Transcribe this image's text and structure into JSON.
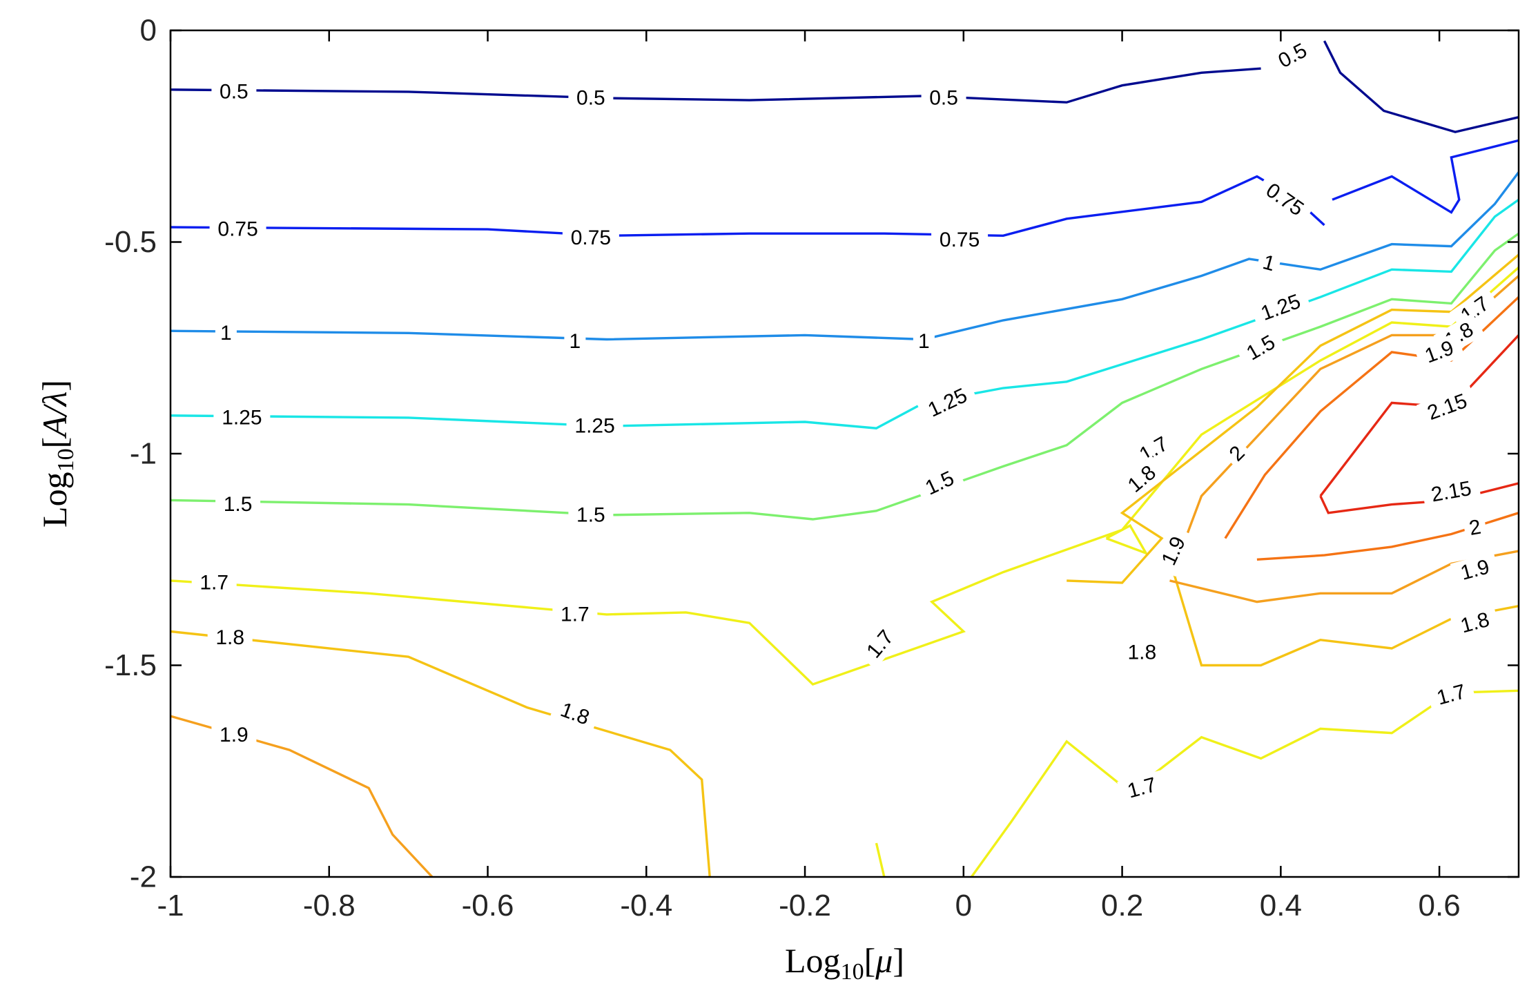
{
  "chart_data": {
    "type": "contour",
    "xlabel": {
      "prefix": "Log",
      "sub": "10",
      "open": "[",
      "var": "μ",
      "close": "]"
    },
    "ylabel": {
      "prefix": "Log",
      "sub": "10",
      "open": "[",
      "var": "A/λ",
      "close": "]"
    },
    "xlim": [
      -1,
      0.7
    ],
    "ylim": [
      -2,
      0
    ],
    "xticks": [
      -1,
      -0.8,
      -0.6,
      -0.4,
      -0.2,
      0,
      0.2,
      0.4,
      0.6
    ],
    "xtick_labels": [
      "-1",
      "-0.8",
      "-0.6",
      "-0.4",
      "-0.2",
      "0",
      "0.2",
      "0.4",
      "0.6"
    ],
    "yticks": [
      0,
      -0.5,
      -1,
      -1.5,
      -2
    ],
    "ytick_labels": [
      "0",
      "-0.5",
      "-1",
      "-1.5",
      "-2"
    ],
    "grid": false,
    "colors": {
      "0.5": "#000a8f",
      "0.75": "#0a1ef0",
      "1": "#1f8ce8",
      "1.25": "#19e6e6",
      "1.5": "#7df06e",
      "1.7": "#f0f019",
      "1.8": "#f5c314",
      "1.9": "#f5a01e",
      "2": "#f57314",
      "2.15": "#e62814"
    },
    "contours": [
      {
        "level": "0.5",
        "points": [
          [
            -1,
            -0.14
          ],
          [
            -0.7,
            -0.145
          ],
          [
            -0.45,
            -0.16
          ],
          [
            -0.27,
            -0.165
          ],
          [
            -0.05,
            -0.155
          ],
          [
            0.13,
            -0.17
          ],
          [
            0.2,
            -0.13
          ],
          [
            0.3,
            -0.1
          ],
          [
            0.375,
            -0.09
          ]
        ]
      },
      {
        "level": "0.5",
        "points": [
          [
            0.455,
            -0.025
          ],
          [
            0.475,
            -0.1
          ],
          [
            0.53,
            -0.19
          ],
          [
            0.62,
            -0.24
          ],
          [
            0.7,
            -0.205
          ]
        ]
      },
      {
        "level": "0.75",
        "points": [
          [
            -1,
            -0.465
          ],
          [
            -0.6,
            -0.47
          ],
          [
            -0.45,
            -0.485
          ],
          [
            -0.27,
            -0.48
          ],
          [
            -0.1,
            -0.48
          ],
          [
            0.05,
            -0.485
          ],
          [
            0.13,
            -0.445
          ],
          [
            0.3,
            -0.405
          ],
          [
            0.37,
            -0.345
          ],
          [
            0.42,
            -0.4
          ],
          [
            0.455,
            -0.46
          ]
        ]
      },
      {
        "level": "0.75",
        "points": [
          [
            0.465,
            -0.4
          ],
          [
            0.54,
            -0.345
          ],
          [
            0.615,
            -0.43
          ],
          [
            0.625,
            -0.4
          ],
          [
            0.615,
            -0.3
          ],
          [
            0.7,
            -0.26
          ]
        ]
      },
      {
        "level": "1",
        "points": [
          [
            -1,
            -0.71
          ],
          [
            -0.7,
            -0.715
          ],
          [
            -0.45,
            -0.73
          ],
          [
            -0.2,
            -0.72
          ],
          [
            -0.05,
            -0.73
          ],
          [
            0.05,
            -0.685
          ],
          [
            0.2,
            -0.635
          ],
          [
            0.3,
            -0.58
          ],
          [
            0.36,
            -0.54
          ],
          [
            0.45,
            -0.565
          ],
          [
            0.54,
            -0.505
          ],
          [
            0.615,
            -0.51
          ],
          [
            0.67,
            -0.41
          ],
          [
            0.7,
            -0.335
          ]
        ]
      },
      {
        "level": "1.25",
        "points": [
          [
            -1,
            -0.91
          ],
          [
            -0.7,
            -0.915
          ],
          [
            -0.45,
            -0.935
          ],
          [
            -0.2,
            -0.925
          ],
          [
            -0.11,
            -0.94
          ],
          [
            -0.05,
            -0.88
          ],
          [
            0.05,
            -0.845
          ],
          [
            0.13,
            -0.83
          ],
          [
            0.3,
            -0.73
          ],
          [
            0.45,
            -0.63
          ],
          [
            0.54,
            -0.565
          ],
          [
            0.615,
            -0.57
          ],
          [
            0.67,
            -0.44
          ],
          [
            0.7,
            -0.4
          ]
        ]
      },
      {
        "level": "1.5",
        "points": [
          [
            -1,
            -1.11
          ],
          [
            -0.7,
            -1.12
          ],
          [
            -0.45,
            -1.145
          ],
          [
            -0.27,
            -1.14
          ],
          [
            -0.19,
            -1.155
          ],
          [
            -0.11,
            -1.135
          ],
          [
            0.05,
            -1.03
          ],
          [
            0.13,
            -0.98
          ],
          [
            0.2,
            -0.88
          ],
          [
            0.3,
            -0.8
          ],
          [
            0.45,
            -0.7
          ],
          [
            0.54,
            -0.635
          ],
          [
            0.615,
            -0.645
          ],
          [
            0.67,
            -0.52
          ],
          [
            0.7,
            -0.48
          ]
        ]
      },
      {
        "level": "1.7",
        "points": [
          [
            -1,
            -1.3
          ],
          [
            -0.75,
            -1.33
          ],
          [
            -0.45,
            -1.38
          ],
          [
            -0.35,
            -1.375
          ],
          [
            -0.27,
            -1.4
          ],
          [
            -0.19,
            -1.545
          ],
          [
            0,
            -1.42
          ],
          [
            -0.04,
            -1.35
          ],
          [
            0.05,
            -1.28
          ],
          [
            0.2,
            -1.18
          ],
          [
            0.3,
            -0.955
          ],
          [
            0.45,
            -0.78
          ],
          [
            0.54,
            -0.69
          ],
          [
            0.615,
            -0.7
          ],
          [
            0.7,
            -0.56
          ]
        ]
      },
      {
        "level": "1.7",
        "points": [
          [
            0.18,
            -1.2
          ],
          [
            0.21,
            -1.17
          ],
          [
            0.23,
            -1.235
          ],
          [
            0.18,
            -1.2
          ]
        ]
      },
      {
        "level": "1.7",
        "points": [
          [
            -0.11,
            -1.92
          ],
          [
            -0.1,
            -2
          ]
        ]
      },
      {
        "level": "1.7",
        "points": [
          [
            0.01,
            -2
          ],
          [
            0.06,
            -1.87
          ],
          [
            0.13,
            -1.68
          ],
          [
            0.21,
            -1.8
          ],
          [
            0.3,
            -1.67
          ],
          [
            0.375,
            -1.72
          ],
          [
            0.45,
            -1.65
          ],
          [
            0.54,
            -1.66
          ],
          [
            0.615,
            -1.565
          ],
          [
            0.7,
            -1.56
          ]
        ]
      },
      {
        "level": "1.8",
        "points": [
          [
            -1,
            -1.42
          ],
          [
            -0.7,
            -1.48
          ],
          [
            -0.55,
            -1.6
          ],
          [
            -0.37,
            -1.7
          ],
          [
            -0.33,
            -1.77
          ],
          [
            -0.32,
            -2
          ]
        ]
      },
      {
        "level": "1.8",
        "points": [
          [
            0.13,
            -1.3
          ],
          [
            0.2,
            -1.305
          ],
          [
            0.25,
            -1.2
          ],
          [
            0.2,
            -1.14
          ],
          [
            0.37,
            -0.89
          ],
          [
            0.45,
            -0.745
          ],
          [
            0.54,
            -0.66
          ],
          [
            0.615,
            -0.665
          ],
          [
            0.7,
            -0.53
          ]
        ]
      },
      {
        "level": "1.8",
        "points": [
          [
            0.26,
            -1.25
          ],
          [
            0.3,
            -1.5
          ],
          [
            0.375,
            -1.5
          ],
          [
            0.45,
            -1.44
          ],
          [
            0.54,
            -1.46
          ],
          [
            0.615,
            -1.39
          ],
          [
            0.7,
            -1.36
          ]
        ]
      },
      {
        "level": "1.9",
        "points": [
          [
            -1,
            -1.62
          ],
          [
            -0.85,
            -1.7
          ],
          [
            -0.75,
            -1.79
          ],
          [
            -0.72,
            -1.9
          ],
          [
            -0.67,
            -2
          ]
        ]
      },
      {
        "level": "1.9",
        "points": [
          [
            0.26,
            -1.3
          ],
          [
            0.37,
            -1.35
          ],
          [
            0.45,
            -1.33
          ],
          [
            0.54,
            -1.33
          ],
          [
            0.615,
            -1.26
          ],
          [
            0.7,
            -1.23
          ]
        ]
      },
      {
        "level": "1.9",
        "points": [
          [
            0.28,
            -1.2
          ],
          [
            0.3,
            -1.1
          ],
          [
            0.375,
            -0.95
          ],
          [
            0.45,
            -0.8
          ],
          [
            0.54,
            -0.72
          ],
          [
            0.615,
            -0.72
          ],
          [
            0.7,
            -0.58
          ]
        ]
      },
      {
        "level": "2",
        "points": [
          [
            0.37,
            -1.25
          ],
          [
            0.455,
            -1.24
          ],
          [
            0.54,
            -1.22
          ],
          [
            0.615,
            -1.19
          ],
          [
            0.7,
            -1.14
          ]
        ]
      },
      {
        "level": "2",
        "points": [
          [
            0.33,
            -1.2
          ],
          [
            0.38,
            -1.05
          ],
          [
            0.45,
            -0.9
          ],
          [
            0.54,
            -0.76
          ],
          [
            0.615,
            -0.78
          ],
          [
            0.7,
            -0.63
          ]
        ]
      },
      {
        "level": "2.15",
        "points": [
          [
            0.45,
            -1.1
          ],
          [
            0.54,
            -0.88
          ],
          [
            0.615,
            -0.89
          ],
          [
            0.7,
            -0.72
          ]
        ]
      },
      {
        "level": "2.15",
        "points": [
          [
            0.45,
            -1.1
          ],
          [
            0.46,
            -1.14
          ],
          [
            0.54,
            -1.12
          ],
          [
            0.615,
            -1.11
          ],
          [
            0.7,
            -1.07
          ]
        ]
      }
    ],
    "labels": [
      {
        "text": "0.5",
        "x": -0.92,
        "y": -0.145,
        "rot": 0
      },
      {
        "text": "0.5",
        "x": -0.47,
        "y": -0.16,
        "rot": 0
      },
      {
        "text": "0.5",
        "x": -0.025,
        "y": -0.16,
        "rot": 0
      },
      {
        "text": "0.5",
        "x": 0.415,
        "y": -0.06,
        "rot": -28
      },
      {
        "text": "0.75",
        "x": -0.915,
        "y": -0.47,
        "rot": 0
      },
      {
        "text": "0.75",
        "x": -0.47,
        "y": -0.49,
        "rot": 0
      },
      {
        "text": "0.75",
        "x": -0.005,
        "y": -0.495,
        "rot": 0
      },
      {
        "text": "0.75",
        "x": 0.405,
        "y": -0.4,
        "rot": 35
      },
      {
        "text": "1",
        "x": -0.93,
        "y": -0.715,
        "rot": 0
      },
      {
        "text": "1",
        "x": -0.49,
        "y": -0.735,
        "rot": 0
      },
      {
        "text": "1",
        "x": -0.05,
        "y": -0.735,
        "rot": 0
      },
      {
        "text": "1",
        "x": 0.385,
        "y": -0.55,
        "rot": 15
      },
      {
        "text": "1.25",
        "x": -0.91,
        "y": -0.915,
        "rot": 0
      },
      {
        "text": "1.25",
        "x": -0.465,
        "y": -0.935,
        "rot": 0
      },
      {
        "text": "1.25",
        "x": -0.02,
        "y": -0.88,
        "rot": -25
      },
      {
        "text": "1.25",
        "x": 0.4,
        "y": -0.655,
        "rot": -20
      },
      {
        "text": "1.5",
        "x": -0.915,
        "y": -1.12,
        "rot": 0
      },
      {
        "text": "1.5",
        "x": -0.47,
        "y": -1.145,
        "rot": 0
      },
      {
        "text": "1.5",
        "x": -0.03,
        "y": -1.07,
        "rot": -25
      },
      {
        "text": "1.5",
        "x": 0.375,
        "y": -0.75,
        "rot": -30
      },
      {
        "text": "1.7",
        "x": -0.945,
        "y": -1.305,
        "rot": 0
      },
      {
        "text": "1.7",
        "x": -0.49,
        "y": -1.38,
        "rot": 0
      },
      {
        "text": "1.7",
        "x": -0.105,
        "y": -1.45,
        "rot": -50
      },
      {
        "text": "1.7",
        "x": 0.24,
        "y": -0.99,
        "rot": -30
      },
      {
        "text": "1.7",
        "x": 0.225,
        "y": -1.79,
        "rot": -15
      },
      {
        "text": "1.7",
        "x": 0.615,
        "y": -1.57,
        "rot": -15
      },
      {
        "text": "1.7",
        "x": 0.645,
        "y": -0.66,
        "rot": -35
      },
      {
        "text": "1.8",
        "x": -0.925,
        "y": -1.435,
        "rot": 0
      },
      {
        "text": "1.8",
        "x": -0.49,
        "y": -1.615,
        "rot": 20
      },
      {
        "text": "1.8",
        "x": 0.225,
        "y": -1.06,
        "rot": -40
      },
      {
        "text": "1.8",
        "x": 0.225,
        "y": -1.47,
        "rot": 0
      },
      {
        "text": "1.8",
        "x": 0.645,
        "y": -1.4,
        "rot": -15
      },
      {
        "text": "1.8",
        "x": 0.625,
        "y": -0.72,
        "rot": -30
      },
      {
        "text": "1.9",
        "x": -0.92,
        "y": -1.665,
        "rot": 0
      },
      {
        "text": "1.9",
        "x": 0.265,
        "y": -1.23,
        "rot": -65
      },
      {
        "text": "1.9",
        "x": 0.645,
        "y": -1.275,
        "rot": -15
      },
      {
        "text": "1.9",
        "x": 0.6,
        "y": -0.76,
        "rot": -20
      },
      {
        "text": "2",
        "x": 0.345,
        "y": -1.0,
        "rot": -45
      },
      {
        "text": "2",
        "x": 0.645,
        "y": -1.175,
        "rot": -10
      },
      {
        "text": "2.15",
        "x": 0.61,
        "y": -0.89,
        "rot": -20
      },
      {
        "text": "2.15",
        "x": 0.615,
        "y": -1.09,
        "rot": -10
      }
    ]
  }
}
